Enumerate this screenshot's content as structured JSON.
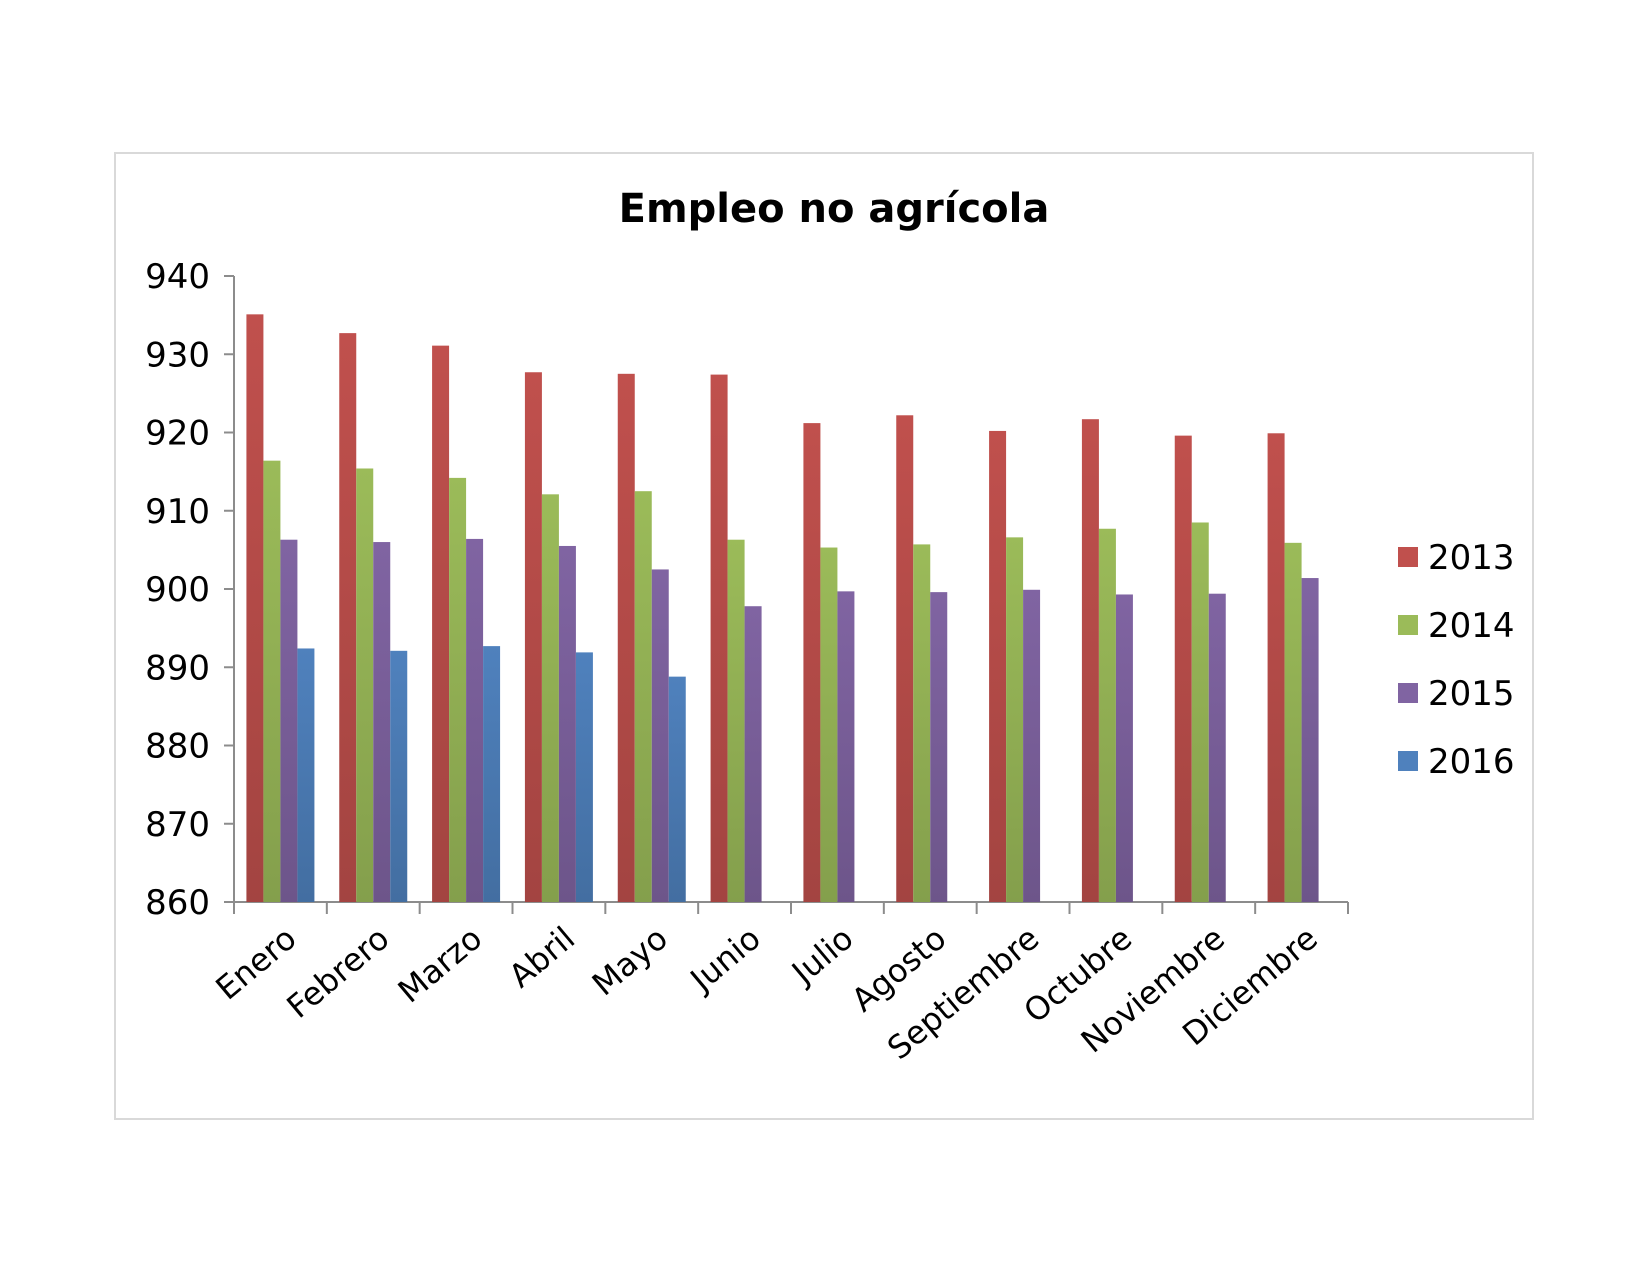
{
  "chart_data": {
    "type": "bar",
    "title": "Empleo no agrícola",
    "xlabel": "",
    "ylabel": "",
    "ylim": [
      860,
      940
    ],
    "yticks": [
      860,
      870,
      880,
      890,
      900,
      910,
      920,
      930,
      940
    ],
    "grid": false,
    "legend_position": "right",
    "categories": [
      "Enero",
      "Febrero",
      "Marzo",
      "Abril",
      "Mayo",
      "Junio",
      "Julio",
      "Agosto",
      "Septiembre",
      "Octubre",
      "Noviembre",
      "Diciembre"
    ],
    "series": [
      {
        "name": "2013",
        "color": "#c0504d",
        "values": [
          935.1,
          932.7,
          931.1,
          927.7,
          927.5,
          927.4,
          921.2,
          922.2,
          920.2,
          921.7,
          919.6,
          919.9
        ]
      },
      {
        "name": "2014",
        "color": "#9bbb59",
        "values": [
          916.4,
          915.4,
          914.2,
          912.1,
          912.5,
          906.3,
          905.3,
          905.7,
          906.6,
          907.7,
          908.5,
          905.9
        ]
      },
      {
        "name": "2015",
        "color": "#8064a2",
        "values": [
          906.3,
          906.0,
          906.4,
          905.5,
          902.5,
          897.8,
          899.7,
          899.6,
          899.9,
          899.3,
          899.4,
          901.4
        ]
      },
      {
        "name": "2016",
        "color": "#4f81bd",
        "values": [
          892.4,
          892.1,
          892.7,
          891.9,
          888.8,
          null,
          null,
          null,
          null,
          null,
          null,
          null
        ]
      }
    ]
  }
}
